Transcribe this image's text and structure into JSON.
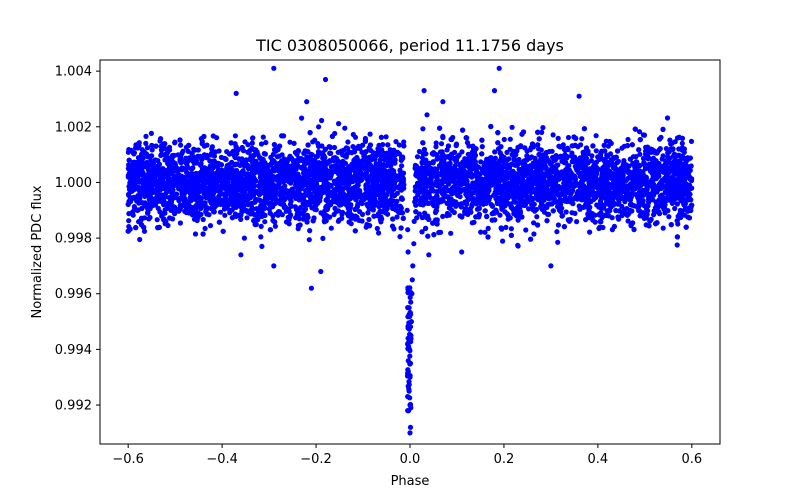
{
  "chart_data": {
    "type": "scatter",
    "title": "TIC 0308050066, period 11.1756 days",
    "xlabel": "Phase",
    "ylabel": "Normalized PDC flux",
    "xlim": [
      -0.66,
      0.66
    ],
    "ylim": [
      0.9906,
      1.0044
    ],
    "xticks": [
      -0.6,
      -0.4,
      -0.2,
      0.0,
      0.2,
      0.4,
      0.6
    ],
    "xtick_labels": [
      "−0.6",
      "−0.4",
      "−0.2",
      "0.0",
      "0.2",
      "0.4",
      "0.6"
    ],
    "yticks": [
      0.992,
      0.994,
      0.996,
      0.998,
      1.0,
      1.002,
      1.004
    ],
    "ytick_labels": [
      "0.992",
      "0.994",
      "0.996",
      "0.998",
      "1.000",
      "1.002",
      "1.004"
    ],
    "grid": false,
    "marker_color": "#0000ff",
    "series": [
      {
        "name": "PDC flux",
        "description_of_distribution": "dense band of ~9000 points centered at flux 1.000 with scatter ~0.0007 across phase -0.6 to 0.6, gap near phase 0, transit dip at phase 0 down to ~0.9915",
        "baseline_flux": 1.0,
        "baseline_scatter": 0.0007,
        "phase_range": [
          -0.6,
          0.6
        ],
        "transit_center_phase": -0.001,
        "transit_min_flux": 0.9917,
        "transit_points": [
          [
            -0.003,
            0.9918
          ],
          [
            -0.002,
            0.9925
          ],
          [
            0.0,
            0.993
          ],
          [
            0.001,
            0.9935
          ],
          [
            -0.001,
            0.994
          ],
          [
            0.002,
            0.9945
          ],
          [
            0.003,
            0.995
          ],
          [
            -0.002,
            0.9955
          ],
          [
            0.0,
            0.992
          ],
          [
            0.004,
            0.996
          ],
          [
            0.005,
            0.9965
          ],
          [
            0.006,
            0.997
          ],
          [
            -0.004,
            0.9975
          ],
          [
            0.008,
            0.9978
          ],
          [
            -0.005,
            0.9983
          ],
          [
            0.009,
            0.9986
          ],
          [
            -0.006,
            0.999
          ],
          [
            0.01,
            0.9993
          ],
          [
            0.001,
            0.9912
          ],
          [
            0.0,
            0.991
          ]
        ],
        "outliers": [
          [
            -0.29,
            1.0041
          ],
          [
            0.19,
            1.0041
          ],
          [
            -0.18,
            1.0037
          ],
          [
            -0.37,
            1.0032
          ],
          [
            0.03,
            1.0033
          ],
          [
            0.36,
            1.0031
          ],
          [
            -0.22,
            1.0029
          ],
          [
            0.07,
            1.0029
          ],
          [
            0.18,
            1.0033
          ],
          [
            -0.21,
            0.9962
          ],
          [
            -0.29,
            0.997
          ],
          [
            0.3,
            0.997
          ],
          [
            -0.19,
            0.9968
          ],
          [
            -0.36,
            0.9974
          ],
          [
            0.11,
            0.9975
          ],
          [
            0.04,
            0.9974
          ]
        ]
      }
    ]
  }
}
